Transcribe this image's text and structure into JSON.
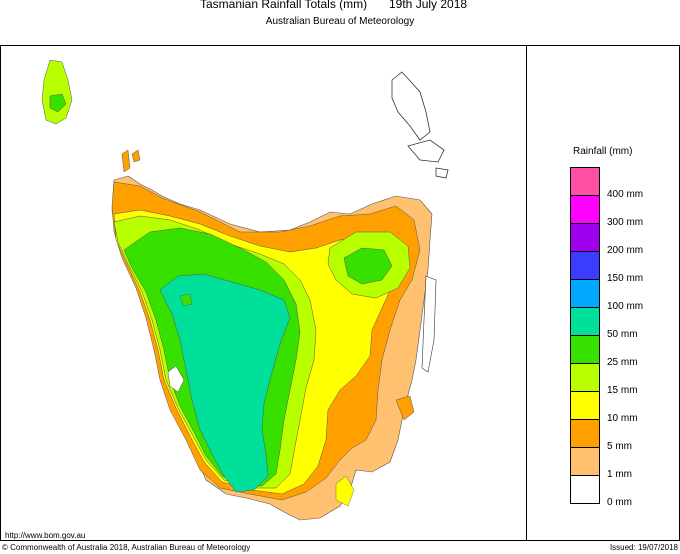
{
  "header": {
    "title": "Tasmanian Rainfall Totals (mm)",
    "date": "19th July 2018",
    "subtitle": "Australian Bureau of Meteorology"
  },
  "legend": {
    "title": "Rainfall (mm)",
    "items": [
      {
        "label": "400 mm",
        "color": "#ff4fa3"
      },
      {
        "label": "300 mm",
        "color": "#ff00ff"
      },
      {
        "label": "200 mm",
        "color": "#a000f0"
      },
      {
        "label": "150 mm",
        "color": "#3c3cff"
      },
      {
        "label": "100 mm",
        "color": "#00a8ff"
      },
      {
        "label": "50 mm",
        "color": "#00e09a"
      },
      {
        "label": "25 mm",
        "color": "#38e000"
      },
      {
        "label": "15 mm",
        "color": "#b8ff00"
      },
      {
        "label": "10 mm",
        "color": "#ffff00"
      },
      {
        "label": "5 mm",
        "color": "#ffa000"
      },
      {
        "label": "1 mm",
        "color": "#ffc070"
      },
      {
        "label": "0 mm",
        "color": "#ffffff"
      }
    ]
  },
  "footer": {
    "url": "http://www.bom.gov.au",
    "copyright": "© Commonwealth of Australia 2018, Australian Bureau of Meteorology",
    "issued": "Issued: 19/07/2018"
  }
}
